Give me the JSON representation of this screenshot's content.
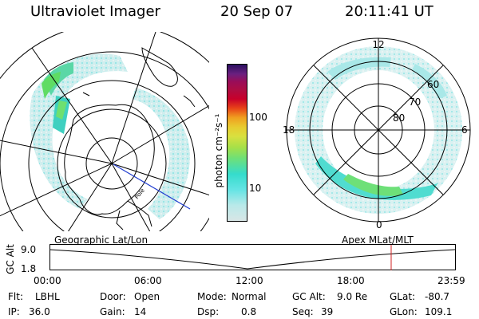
{
  "header": {
    "instrument": "Ultraviolet Imager",
    "date": "20 Sep 07",
    "time": "20:11:41 UT"
  },
  "colorbar": {
    "unit_label": "photon cm⁻²s⁻¹",
    "ticks": [
      "100",
      "10"
    ],
    "colors": [
      "#d8e6e6",
      "#b9e9e9",
      "#64e4e4",
      "#35dccc",
      "#6ee078",
      "#a6e048",
      "#d8e040",
      "#e8cc30",
      "#f0a020",
      "#e84418",
      "#c8002a",
      "#ad0d43",
      "#9a0d58",
      "#6a2080",
      "#2a1060"
    ]
  },
  "left_map": {
    "label": "Geographic Lat/Lon",
    "site_label": "Pole"
  },
  "right_map": {
    "label": "Apex MLat/MLT",
    "mlt_labels": {
      "top": "12",
      "left": "18",
      "right": "6",
      "bottom": "0"
    },
    "lat_labels": [
      "60",
      "70",
      "80"
    ]
  },
  "timeline": {
    "ylabel": "GC Alt",
    "y_ticks": [
      "9.0",
      "1.8"
    ],
    "x_ticks": [
      "00:00",
      "06:00",
      "12:00",
      "18:00",
      "23:59"
    ],
    "current_fraction": 0.8415
  },
  "info": {
    "flt_label": "Flt:",
    "flt_value": "LBHL",
    "ip_label": "IP:",
    "ip_value": "36.0",
    "door_label": "Door:",
    "door_value": "Open",
    "gain_label": "Gain:",
    "gain_value": "14",
    "mode_label": "Mode:",
    "mode_value": "Normal",
    "dsp_label": "Dsp:",
    "dsp_value": "0.8",
    "gcalt_label": "GC Alt:",
    "gcalt_value": "9.0 Re",
    "seq_label": "Seq:",
    "seq_value": "39",
    "glat_label": "GLat:",
    "glat_value": "-80.7",
    "glon_label": "GLon:",
    "glon_value": "109.1"
  }
}
